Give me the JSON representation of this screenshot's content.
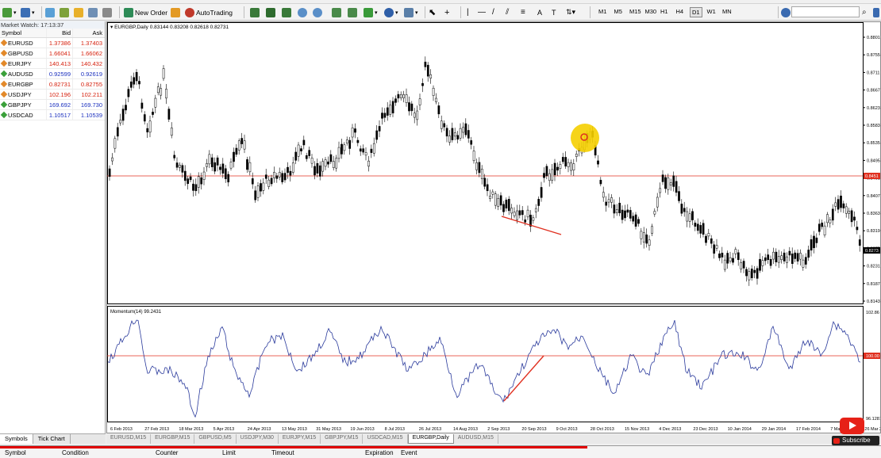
{
  "toolbar": {
    "new_order": "New Order",
    "autotrading": "AutoTrading",
    "timeframes": [
      "M1",
      "M5",
      "M15",
      "M30",
      "H1",
      "H4",
      "D1",
      "W1",
      "MN"
    ],
    "active_timeframe": "D1"
  },
  "market_watch": {
    "title": "Market Watch: 17:13:37",
    "headers": {
      "symbol": "Symbol",
      "bid": "Bid",
      "ask": "Ask"
    },
    "rows": [
      {
        "symbol": "EURUSD",
        "bid": "1.37386",
        "ask": "1.37403",
        "dir": "up"
      },
      {
        "symbol": "GBPUSD",
        "bid": "1.66041",
        "ask": "1.66062",
        "dir": "up"
      },
      {
        "symbol": "EURJPY",
        "bid": "140.413",
        "ask": "140.432",
        "dir": "up"
      },
      {
        "symbol": "AUDUSD",
        "bid": "0.92599",
        "ask": "0.92619",
        "dir": "down"
      },
      {
        "symbol": "EURGBP",
        "bid": "0.82731",
        "ask": "0.82755",
        "dir": "up"
      },
      {
        "symbol": "USDJPY",
        "bid": "102.196",
        "ask": "102.211",
        "dir": "up"
      },
      {
        "symbol": "GBPJPY",
        "bid": "169.692",
        "ask": "169.730",
        "dir": "down"
      },
      {
        "symbol": "USDCAD",
        "bid": "1.10517",
        "ask": "1.10539",
        "dir": "down"
      }
    ],
    "tabs": [
      "Symbols",
      "Tick Chart"
    ]
  },
  "chart": {
    "header": "EURGBP,Daily  0.83144 0.83208 0.82618 0.82731",
    "indicator_label": "Momentum(14) 99.2431",
    "price_ticks": [
      "0.8801",
      "0.8755",
      "0.8711",
      "0.8667",
      "0.8623",
      "0.8583",
      "0.8535",
      "0.8495",
      "0.8451",
      "0.8407",
      "0.8363",
      "0.8319",
      "0.8275",
      "0.8231",
      "0.8187",
      "0.8143"
    ],
    "current_price": "0.8273",
    "level_price": "0.8451",
    "momentum_ticks": [
      "102.86",
      "100.00",
      "96.1281"
    ],
    "date_ticks": [
      "6 Feb 2013",
      "27 Feb 2013",
      "18 Mar 2013",
      "5 Apr 2013",
      "24 Apr 2013",
      "13 May 2013",
      "31 May 2013",
      "19 Jun 2013",
      "8 Jul 2013",
      "26 Jul 2013",
      "14 Aug 2013",
      "2 Sep 2013",
      "20 Sep 2013",
      "9 Oct 2013",
      "28 Oct 2013",
      "15 Nov 2013",
      "4 Dec 2013",
      "23 Dec 2013",
      "10 Jan 2014",
      "29 Jan 2014",
      "17 Feb 2014",
      "7 Mar 2014",
      "26 Mar 2014"
    ],
    "colors": {
      "candle": "#000000",
      "level": "#e03020",
      "momentum": "#2a3a9c",
      "highlight": "#f5cf00"
    }
  },
  "chart_tabs": [
    "EURUSD,M15",
    "EURGBP,M15",
    "GBPUSD,M5",
    "USDJPY,M30",
    "EURJPY,M15",
    "GBPJPY,M15",
    "USDCAD,M15",
    "EURGBP,Daily",
    "AUDUSD,M15"
  ],
  "active_chart_tab": "EURGBP,Daily",
  "terminal": {
    "symbol": "Symbol",
    "condition": "Condition",
    "counter": "Counter",
    "limit": "Limit",
    "timeout": "Timeout",
    "expiration": "Expiration",
    "event": "Event"
  },
  "youtube": {
    "subscribe": "Subscribe"
  }
}
